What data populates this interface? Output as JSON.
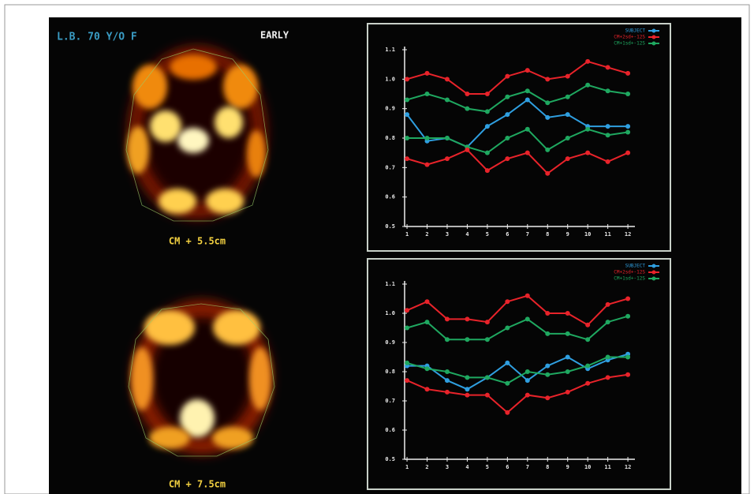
{
  "patient": "L.B. 70 Y/O F",
  "phase": "EARLY",
  "slices": [
    "CM + 5.5cm",
    "CM + 7.5cm"
  ],
  "chart_data": [
    {
      "type": "line",
      "x": [
        1,
        2,
        3,
        4,
        5,
        6,
        7,
        8,
        9,
        10,
        11,
        12
      ],
      "xlim": [
        0.88,
        12.35
      ],
      "xticks": [
        1,
        2,
        3,
        4,
        5,
        6,
        7,
        8,
        9,
        10,
        11,
        12
      ],
      "ylim": [
        0.5,
        1.1
      ],
      "yticks": [
        1.1,
        {
          "value": 1,
          "label": "1.0"
        },
        0.9,
        0.8,
        0.7,
        0.6,
        0.5
      ],
      "series": [
        {
          "name": "SUBJECT",
          "color": "#2f9fe0",
          "values": [
            0.88,
            0.79,
            0.8,
            0.77,
            0.84,
            0.88,
            0.93,
            0.87,
            0.88,
            0.84,
            0.84,
            0.84
          ]
        },
        {
          "name": "CM+2sd+-12S",
          "color": "#e8232a",
          "values": [
            1.0,
            1.02,
            1.0,
            0.95,
            0.95,
            1.01,
            1.03,
            1.0,
            1.01,
            1.06,
            1.04,
            1.02
          ]
        },
        {
          "name": "CM+1sd+-12S",
          "color": "#1fa860",
          "values": [
            0.93,
            0.95,
            0.93,
            0.9,
            0.89,
            0.94,
            0.96,
            0.92,
            0.94,
            0.98,
            0.96,
            0.95
          ]
        },
        {
          "color": "#1fa860",
          "values": [
            0.8,
            0.8,
            0.8,
            0.77,
            0.75,
            0.8,
            0.83,
            0.76,
            0.8,
            0.83,
            0.81,
            0.82
          ]
        },
        {
          "color": "#e8232a",
          "values": [
            0.73,
            0.71,
            0.73,
            0.76,
            0.69,
            0.73,
            0.75,
            0.68,
            0.73,
            0.75,
            0.72,
            0.75
          ]
        }
      ]
    },
    {
      "type": "line",
      "x": [
        1,
        2,
        3,
        4,
        5,
        6,
        7,
        8,
        9,
        10,
        11,
        12
      ],
      "xlim": [
        0.88,
        12.35
      ],
      "xticks": [
        1,
        2,
        3,
        4,
        5,
        6,
        7,
        8,
        9,
        10,
        11,
        12
      ],
      "ylim": [
        0.5,
        1.1
      ],
      "yticks": [
        1.1,
        {
          "value": 1,
          "label": "1.0"
        },
        0.9,
        0.8,
        0.7,
        0.6,
        0.5
      ],
      "series": [
        {
          "name": "SUBJECT",
          "color": "#2f9fe0",
          "values": [
            0.82,
            0.82,
            0.77,
            0.74,
            0.78,
            0.83,
            0.77,
            0.82,
            0.85,
            0.81,
            0.84,
            0.86
          ]
        },
        {
          "name": "CM+2sd+-12S",
          "color": "#e8232a",
          "values": [
            1.01,
            1.04,
            0.98,
            0.98,
            0.97,
            1.04,
            1.06,
            1.0,
            1.0,
            0.96,
            1.03,
            1.05
          ]
        },
        {
          "name": "CM+1sd+-12S",
          "color": "#1fa860",
          "values": [
            0.95,
            0.97,
            0.91,
            0.91,
            0.91,
            0.95,
            0.98,
            0.93,
            0.93,
            0.91,
            0.97,
            0.99
          ]
        },
        {
          "color": "#1fa860",
          "values": [
            0.83,
            0.81,
            0.8,
            0.78,
            0.78,
            0.76,
            0.8,
            0.79,
            0.8,
            0.82,
            0.85,
            0.85
          ]
        },
        {
          "color": "#e8232a",
          "values": [
            0.77,
            0.74,
            0.73,
            0.72,
            0.72,
            0.66,
            0.72,
            0.71,
            0.73,
            0.76,
            0.78,
            0.79
          ]
        }
      ]
    }
  ]
}
